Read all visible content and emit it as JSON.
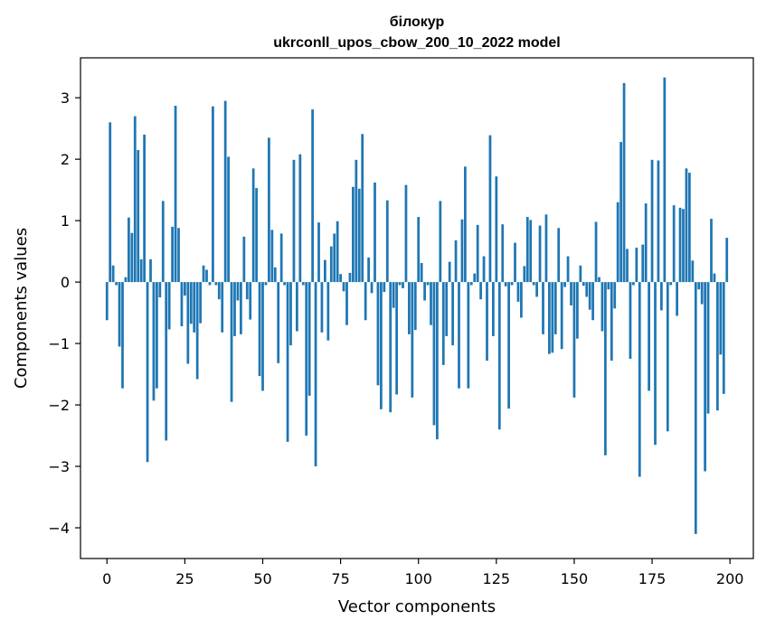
{
  "chart_data": {
    "type": "bar",
    "title": "білокур",
    "subtitle": "ukrconll_upos_cbow_200_10_2022 model",
    "xlabel": "Vector components",
    "ylabel": "Components values",
    "xlim": [
      -8.5,
      207.5
    ],
    "ylim": [
      -4.5,
      3.65
    ],
    "xticks": [
      0,
      25,
      50,
      75,
      100,
      125,
      150,
      175,
      200
    ],
    "yticks": [
      -4,
      -3,
      -2,
      -1,
      0,
      1,
      2,
      3
    ],
    "ytick_labels": [
      "−4",
      "−3",
      "−2",
      "−1",
      "0",
      "1",
      "2",
      "3"
    ],
    "grid": false,
    "bar_color": "#1f77b4",
    "x": [
      0,
      1,
      2,
      3,
      4,
      5,
      6,
      7,
      8,
      9,
      10,
      11,
      12,
      13,
      14,
      15,
      16,
      17,
      18,
      19,
      20,
      21,
      22,
      23,
      24,
      25,
      26,
      27,
      28,
      29,
      30,
      31,
      32,
      33,
      34,
      35,
      36,
      37,
      38,
      39,
      40,
      41,
      42,
      43,
      44,
      45,
      46,
      47,
      48,
      49,
      50,
      51,
      52,
      53,
      54,
      55,
      56,
      57,
      58,
      59,
      60,
      61,
      62,
      63,
      64,
      65,
      66,
      67,
      68,
      69,
      70,
      71,
      72,
      73,
      74,
      75,
      76,
      77,
      78,
      79,
      80,
      81,
      82,
      83,
      84,
      85,
      86,
      87,
      88,
      89,
      90,
      91,
      92,
      93,
      94,
      95,
      96,
      97,
      98,
      99,
      100,
      101,
      102,
      103,
      104,
      105,
      106,
      107,
      108,
      109,
      110,
      111,
      112,
      113,
      114,
      115,
      116,
      117,
      118,
      119,
      120,
      121,
      122,
      123,
      124,
      125,
      126,
      127,
      128,
      129,
      130,
      131,
      132,
      133,
      134,
      135,
      136,
      137,
      138,
      139,
      140,
      141,
      142,
      143,
      144,
      145,
      146,
      147,
      148,
      149,
      150,
      151,
      152,
      153,
      154,
      155,
      156,
      157,
      158,
      159,
      160,
      161,
      162,
      163,
      164,
      165,
      166,
      167,
      168,
      169,
      170,
      171,
      172,
      173,
      174,
      175,
      176,
      177,
      178,
      179,
      180,
      181,
      182,
      183,
      184,
      185,
      186,
      187,
      188,
      189,
      190,
      191,
      192,
      193,
      194,
      195,
      196,
      197,
      198,
      199
    ],
    "values": [
      -0.62,
      2.6,
      0.27,
      -0.05,
      -1.05,
      -1.73,
      0.08,
      1.05,
      0.8,
      2.7,
      2.15,
      0.37,
      2.4,
      -2.93,
      0.37,
      -1.93,
      -1.73,
      -0.25,
      1.32,
      -2.58,
      -0.77,
      0.9,
      2.87,
      0.88,
      -0.72,
      -0.22,
      -1.33,
      -0.68,
      -0.82,
      -1.58,
      -0.67,
      0.27,
      0.2,
      -0.05,
      2.86,
      -0.05,
      -0.28,
      -0.82,
      2.95,
      2.04,
      -1.95,
      -0.88,
      -0.3,
      -0.85,
      0.74,
      -0.28,
      -0.61,
      1.85,
      1.53,
      -1.53,
      -1.77,
      -0.05,
      2.35,
      0.85,
      0.24,
      -1.32,
      0.79,
      -0.05,
      -2.6,
      -1.03,
      1.99,
      -0.8,
      2.08,
      -0.05,
      -2.5,
      -1.85,
      2.81,
      -3.0,
      0.97,
      -0.82,
      0.36,
      -0.95,
      0.58,
      0.79,
      0.99,
      0.13,
      -0.15,
      -0.7,
      0.15,
      1.55,
      1.99,
      1.52,
      2.41,
      -0.62,
      0.4,
      -0.18,
      1.62,
      -1.68,
      -2.07,
      -0.16,
      1.33,
      -2.12,
      -0.42,
      -1.83,
      -0.05,
      -0.1,
      1.58,
      -0.85,
      -1.88,
      -0.78,
      1.06,
      0.31,
      -0.3,
      -0.05,
      -0.7,
      -2.33,
      -2.56,
      1.32,
      -1.35,
      -0.88,
      0.33,
      -1.03,
      0.68,
      -1.73,
      1.02,
      1.88,
      -1.73,
      -0.05,
      0.14,
      0.93,
      -0.28,
      0.42,
      -1.28,
      2.39,
      -0.88,
      1.72,
      -2.4,
      0.94,
      -0.07,
      -2.06,
      -0.05,
      0.64,
      -0.32,
      -0.58,
      0.26,
      1.06,
      1.01,
      -0.05,
      -0.24,
      0.92,
      -0.85,
      1.1,
      -1.17,
      -1.15,
      -0.85,
      0.88,
      -1.09,
      -0.08,
      0.42,
      -0.38,
      -1.88,
      -0.92,
      0.27,
      -0.06,
      -0.24,
      -0.45,
      -0.62,
      0.98,
      0.08,
      -0.8,
      -2.82,
      -0.12,
      -1.28,
      -0.43,
      1.3,
      2.28,
      3.24,
      0.54,
      -1.25,
      -0.05,
      0.56,
      -3.17,
      0.61,
      1.28,
      -1.77,
      1.99,
      -2.65,
      1.98,
      -0.46,
      3.33,
      -2.43,
      -0.05,
      1.25,
      -0.55,
      1.21,
      1.19,
      1.85,
      1.78,
      0.35,
      -4.1,
      -0.12,
      -0.36,
      -3.08,
      -2.14,
      1.03,
      0.14,
      -2.09,
      -1.18,
      -1.82,
      0.72
    ]
  }
}
